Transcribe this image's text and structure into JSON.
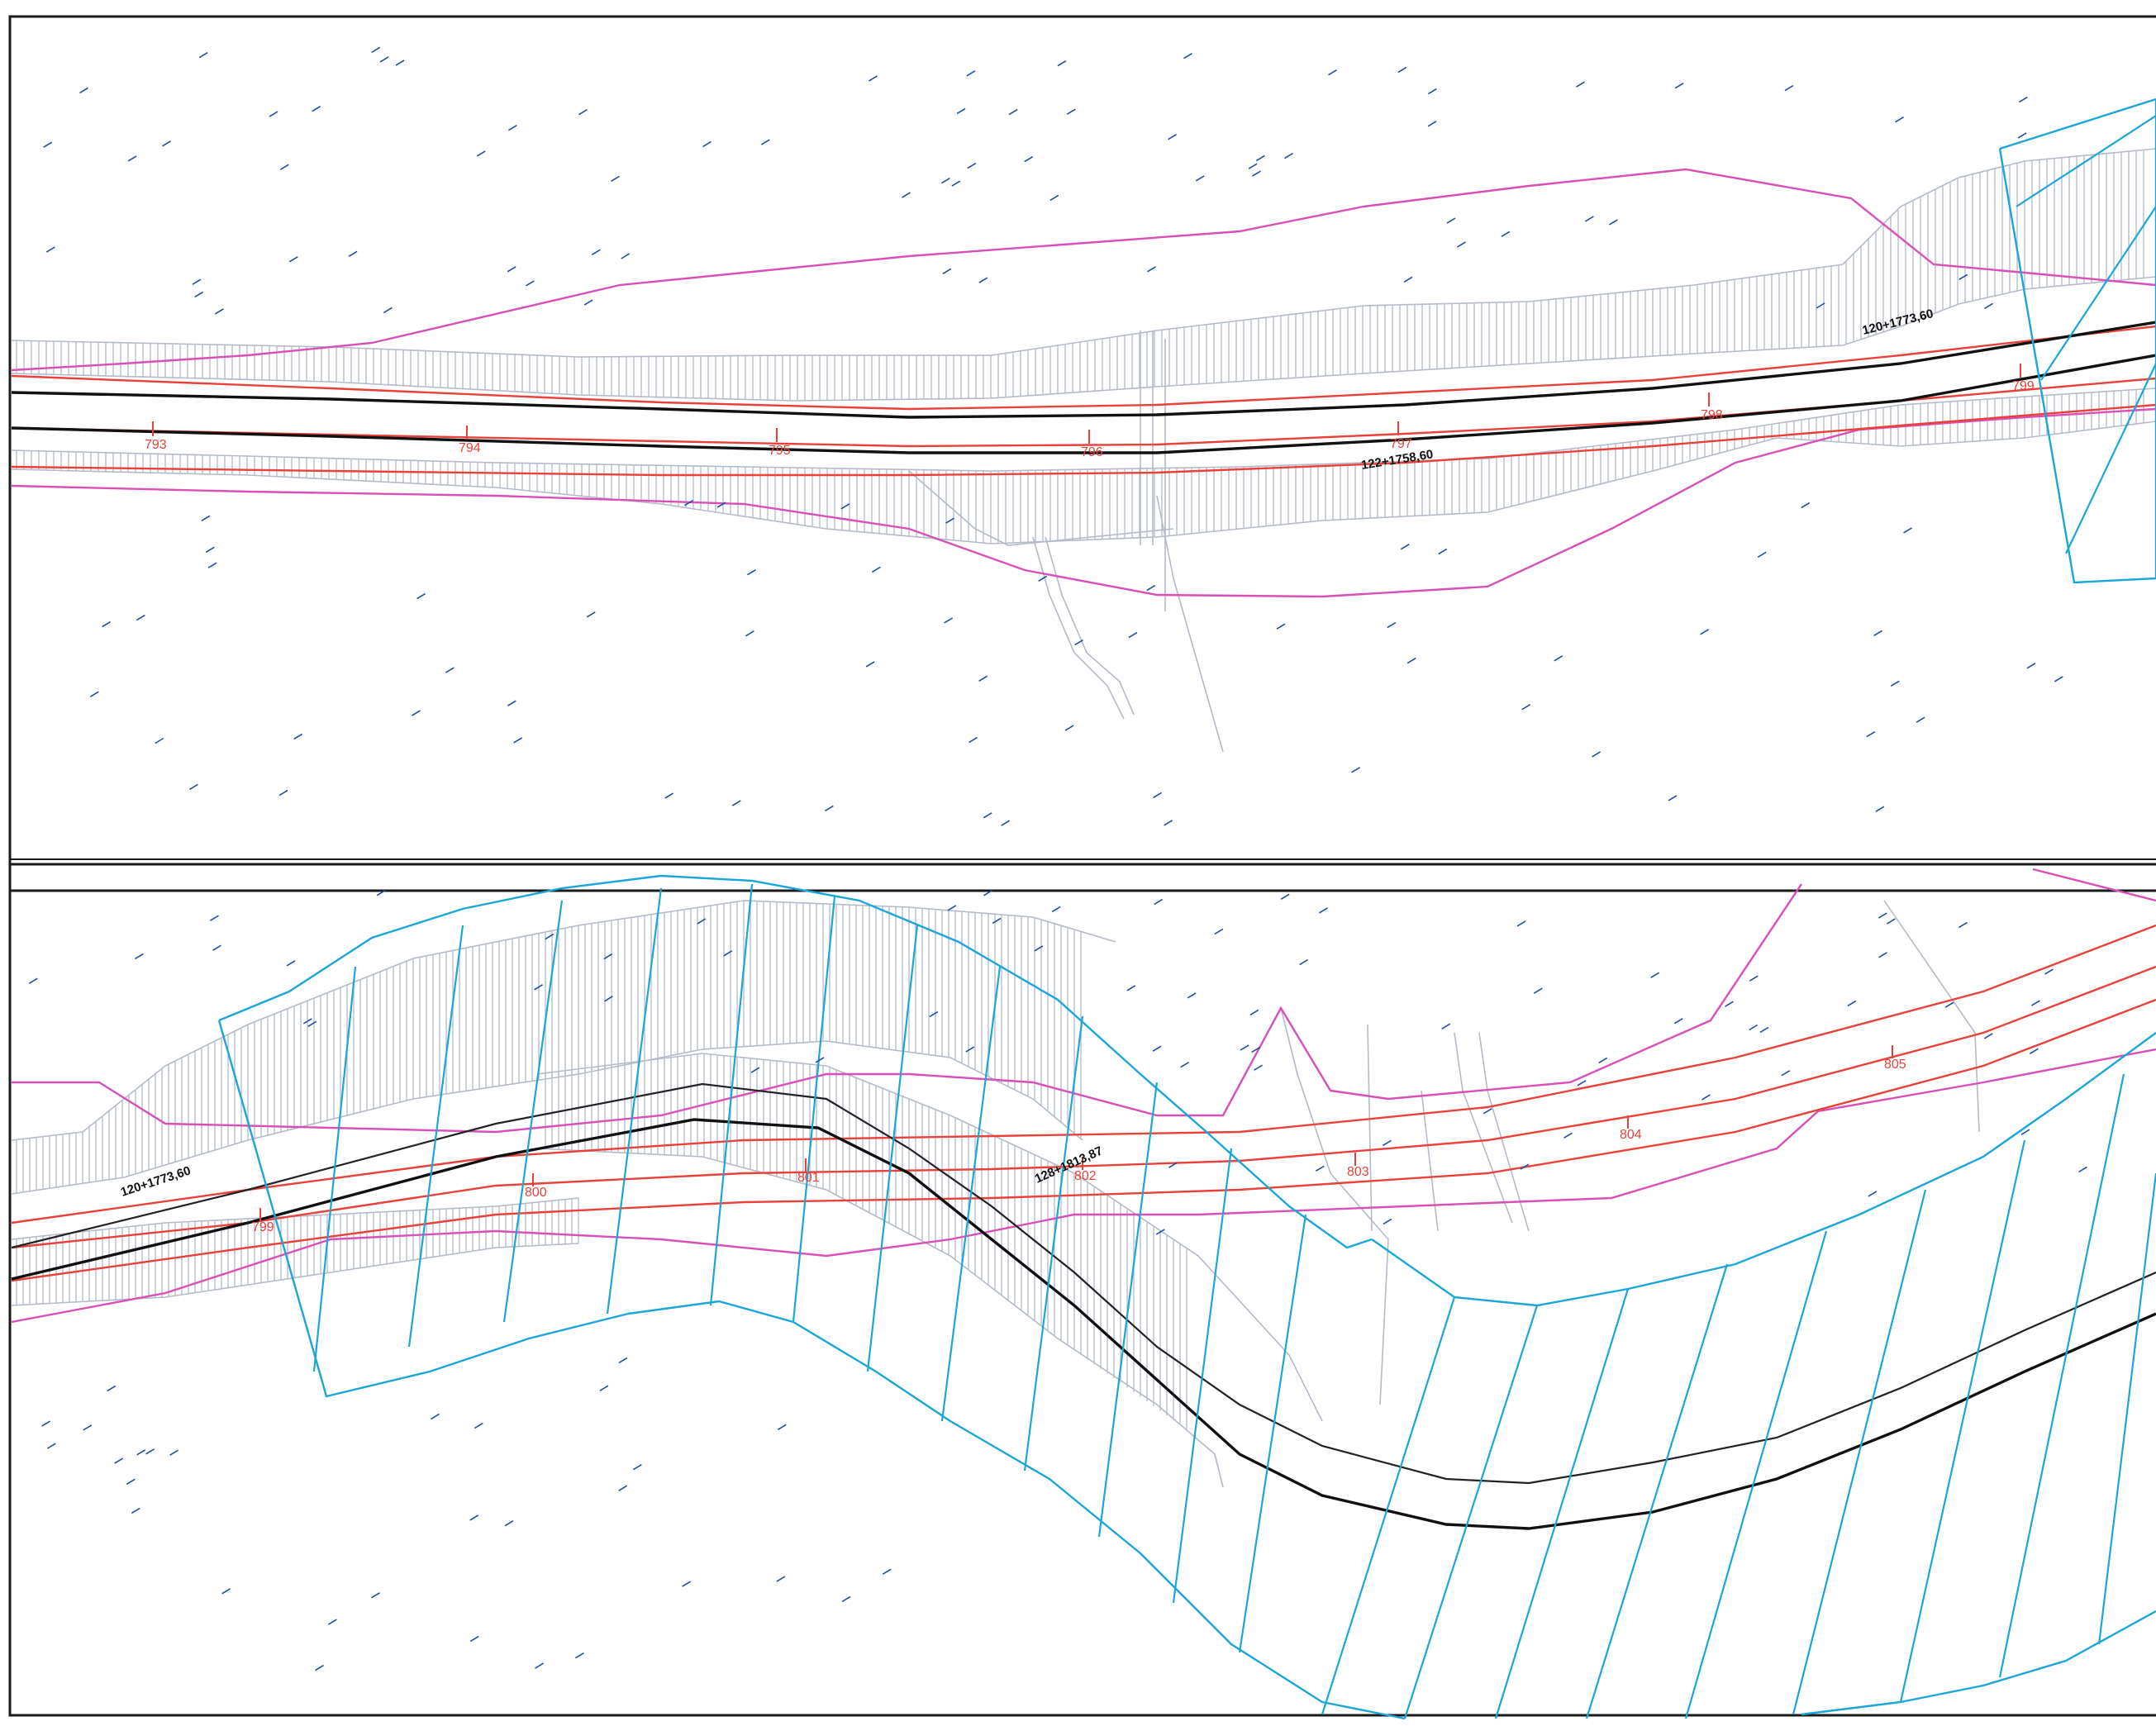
{
  "drawing": {
    "colors": {
      "frame": "#1a1a1a",
      "road_edge": "#e8413a",
      "alignment": "#111111",
      "boundary": "#d84fb8",
      "parcel": "#1ba6d9",
      "earthwork": "#b4bac8",
      "survey_point": "#1e4fa8"
    },
    "icons": {
      "survey_point": "survey-point-icon",
      "station_tick": "station-tick-icon"
    },
    "panel_top": {
      "stations": [
        "793",
        "794",
        "795",
        "796",
        "797",
        "798",
        "799"
      ],
      "chainages": [
        "120+1773,60",
        "122+1758,60"
      ]
    },
    "panel_bottom": {
      "stations": [
        "799",
        "800",
        "801",
        "802",
        "803",
        "804",
        "805"
      ],
      "chainages": [
        "120+1773,60",
        "128+1813,87"
      ]
    }
  }
}
